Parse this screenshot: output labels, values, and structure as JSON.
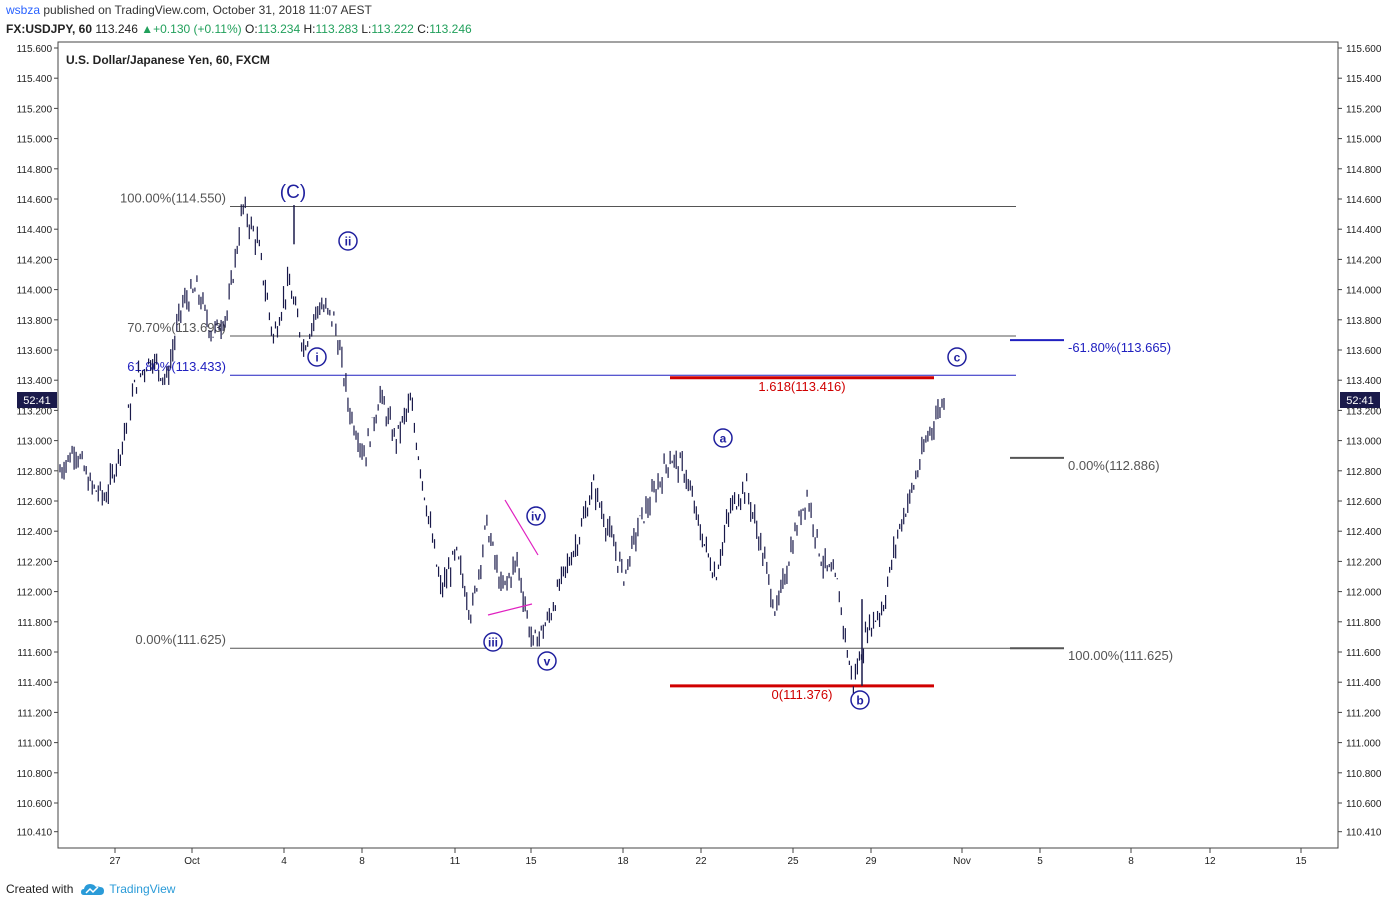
{
  "header": {
    "publisher": "wsbza",
    "published_text": "published on TradingView.com, October 31, 2018 11:07 AEST"
  },
  "quote": {
    "symbol": "FX:USDJPY, 60",
    "last": "113.246",
    "change": "+0.130 (+0.11%)",
    "open_label": "O:",
    "open": "113.234",
    "high_label": "H:",
    "high": "113.283",
    "low_label": "L:",
    "low": "113.222",
    "close_label": "C:",
    "close": "113.246"
  },
  "footer": {
    "created_with": "Created with",
    "brand": "TradingView"
  },
  "colors": {
    "candle": "#1a1a4a",
    "wave_blue": "#1f1f9e",
    "fib_blue": "#2020c0",
    "fib_red": "#d00000",
    "grid_gray": "#555555",
    "triangle_pink": "#e020c0"
  },
  "chart_data": {
    "type": "line",
    "title": "U.S. Dollar/Japanese Yen, 60, FXCM",
    "ylim": [
      110.35,
      115.62
    ],
    "y_ticks": [
      "115.600",
      "115.400",
      "115.200",
      "115.000",
      "114.800",
      "114.600",
      "114.400",
      "114.200",
      "114.000",
      "113.800",
      "113.600",
      "113.400",
      "113.200",
      "113.000",
      "112.800",
      "112.600",
      "112.400",
      "112.200",
      "112.000",
      "111.800",
      "111.600",
      "111.400",
      "111.200",
      "111.000",
      "110.800",
      "110.600",
      "110.410"
    ],
    "x_labels": [
      "27",
      "Oct",
      "4",
      "8",
      "11",
      "15",
      "18",
      "22",
      "25",
      "29",
      "Nov",
      "5",
      "8",
      "12",
      "15"
    ],
    "time_badge": "52:41",
    "price_path": [
      [
        "Sep 25",
        112.8
      ],
      [
        "Sep 26",
        112.95
      ],
      [
        "Sep 27",
        112.7
      ],
      [
        "Sep 28",
        112.62
      ],
      [
        "Sep 28 PM",
        112.95
      ],
      [
        "Sep 29",
        113.4
      ],
      [
        "Sep 30",
        113.55
      ],
      [
        "Oct 1",
        113.4
      ],
      [
        "Oct 1 PM",
        113.9
      ],
      [
        "Oct 2",
        114.0
      ],
      [
        "Oct 3",
        113.7
      ],
      [
        "Oct 3 PM",
        113.85
      ],
      [
        "Oct 4",
        114.55
      ],
      [
        "Oct 4 PM",
        114.3
      ],
      [
        "Oct 5",
        113.68
      ],
      [
        "Oct 5 PM",
        114.05
      ],
      [
        "Oct 6",
        113.62
      ],
      [
        "Oct 6 PM",
        113.9
      ],
      [
        "Oct 8",
        113.8
      ],
      [
        "Oct 8 PM",
        113.2
      ],
      [
        "Oct 9",
        112.9
      ],
      [
        "Oct 9 PM",
        113.3
      ],
      [
        "Oct 10",
        113.0
      ],
      [
        "Oct 10 PM",
        113.25
      ],
      [
        "Oct 11",
        112.6
      ],
      [
        "Oct 11 PM",
        112.0
      ],
      [
        "Oct 12",
        112.25
      ],
      [
        "Oct 12 PM",
        111.85
      ],
      [
        "Oct 13",
        112.45
      ],
      [
        "Oct 14",
        112.0
      ],
      [
        "Oct 14 PM",
        112.2
      ],
      [
        "Oct 15",
        111.65
      ],
      [
        "Oct 15 PM",
        111.8
      ],
      [
        "Oct 16",
        112.1
      ],
      [
        "Oct 17",
        112.35
      ],
      [
        "Oct 18",
        112.7
      ],
      [
        "Oct 18 PM",
        112.4
      ],
      [
        "Oct 19",
        112.1
      ],
      [
        "Oct 20",
        112.45
      ],
      [
        "Oct 21",
        112.65
      ],
      [
        "Oct 22",
        112.89
      ],
      [
        "Oct 23",
        112.8
      ],
      [
        "Oct 23 PM",
        112.4
      ],
      [
        "Oct 24",
        112.1
      ],
      [
        "Oct 24 PM",
        112.55
      ],
      [
        "Oct 25",
        112.7
      ],
      [
        "Oct 25 PM",
        112.3
      ],
      [
        "Oct 26",
        111.85
      ],
      [
        "Oct 26 PM",
        112.3
      ],
      [
        "Oct 27",
        112.65
      ],
      [
        "Oct 27 PM",
        112.2
      ],
      [
        "Oct 28",
        112.05
      ],
      [
        "Oct 28 PM",
        111.38
      ],
      [
        "Oct 29",
        111.75
      ],
      [
        "Oct 29 PM",
        111.9
      ],
      [
        "Oct 30",
        112.4
      ],
      [
        "Oct 30 PM",
        112.7
      ],
      [
        "Oct 31",
        113.05
      ],
      [
        "Oct 31 AM",
        113.28
      ]
    ],
    "fib_levels": [
      {
        "label": "100.00%(114.550)",
        "value": 114.55,
        "color": "gray"
      },
      {
        "label": "70.70%(113.693)",
        "value": 113.693,
        "color": "gray"
      },
      {
        "label": "61.80%(113.433)",
        "value": 113.433,
        "color": "blue"
      },
      {
        "label": "0.00%(111.625)",
        "value": 111.625,
        "color": "gray"
      }
    ],
    "ext_levels": [
      {
        "label": "1.618(113.416)",
        "value": 113.416,
        "color": "red"
      },
      {
        "label": "0(111.376)",
        "value": 111.376,
        "color": "red"
      }
    ],
    "projection_levels": [
      {
        "label": "-61.80%(113.665)",
        "value": 113.665,
        "color": "blue"
      },
      {
        "label": "0.00%(112.886)",
        "value": 112.886,
        "color": "gray"
      },
      {
        "label": "100.00%(111.625)",
        "value": 111.625,
        "color": "gray"
      }
    ],
    "wave_labels": [
      {
        "text": "(C)",
        "style": "paren"
      },
      {
        "text": "ii",
        "style": "circle"
      },
      {
        "text": "i",
        "style": "circle"
      },
      {
        "text": "iii",
        "style": "circle"
      },
      {
        "text": "iv",
        "style": "circle"
      },
      {
        "text": "v",
        "style": "circle"
      },
      {
        "text": "a",
        "style": "circle"
      },
      {
        "text": "b",
        "style": "circle"
      },
      {
        "text": "c",
        "style": "circle"
      }
    ]
  }
}
